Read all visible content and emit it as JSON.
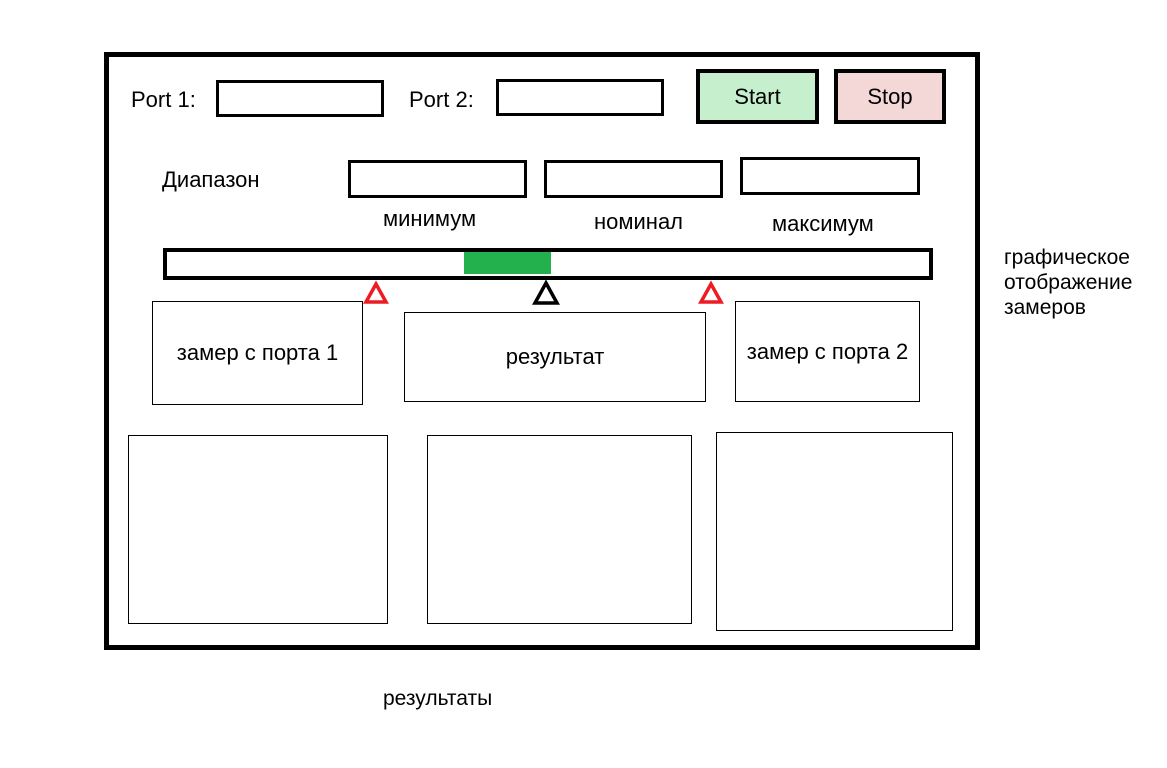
{
  "ports": {
    "port1_label": "Port 1:",
    "port1_value": "",
    "port2_label": "Port 2:",
    "port2_value": ""
  },
  "controls": {
    "start_label": "Start",
    "stop_label": "Stop",
    "start_color": "#c6efce",
    "stop_color": "#f4d7d7"
  },
  "range": {
    "label": "Диапазон",
    "min_label": "минимум",
    "nominal_label": "номинал",
    "max_label": "максимум",
    "min_value": "",
    "nominal_value": "",
    "max_value": ""
  },
  "gauge": {
    "fill_color": "#22b14c",
    "limit_marker_color": "#ed1c24",
    "nominal_marker_color": "#000000"
  },
  "measurements": {
    "port1": "замер с порта 1",
    "result": "результат",
    "port2": "замер с порта 2"
  },
  "annotations": {
    "graphic_note_line1": "графическое",
    "graphic_note_line2": "отображение",
    "graphic_note_line3": "замеров",
    "results_note": "результаты"
  }
}
